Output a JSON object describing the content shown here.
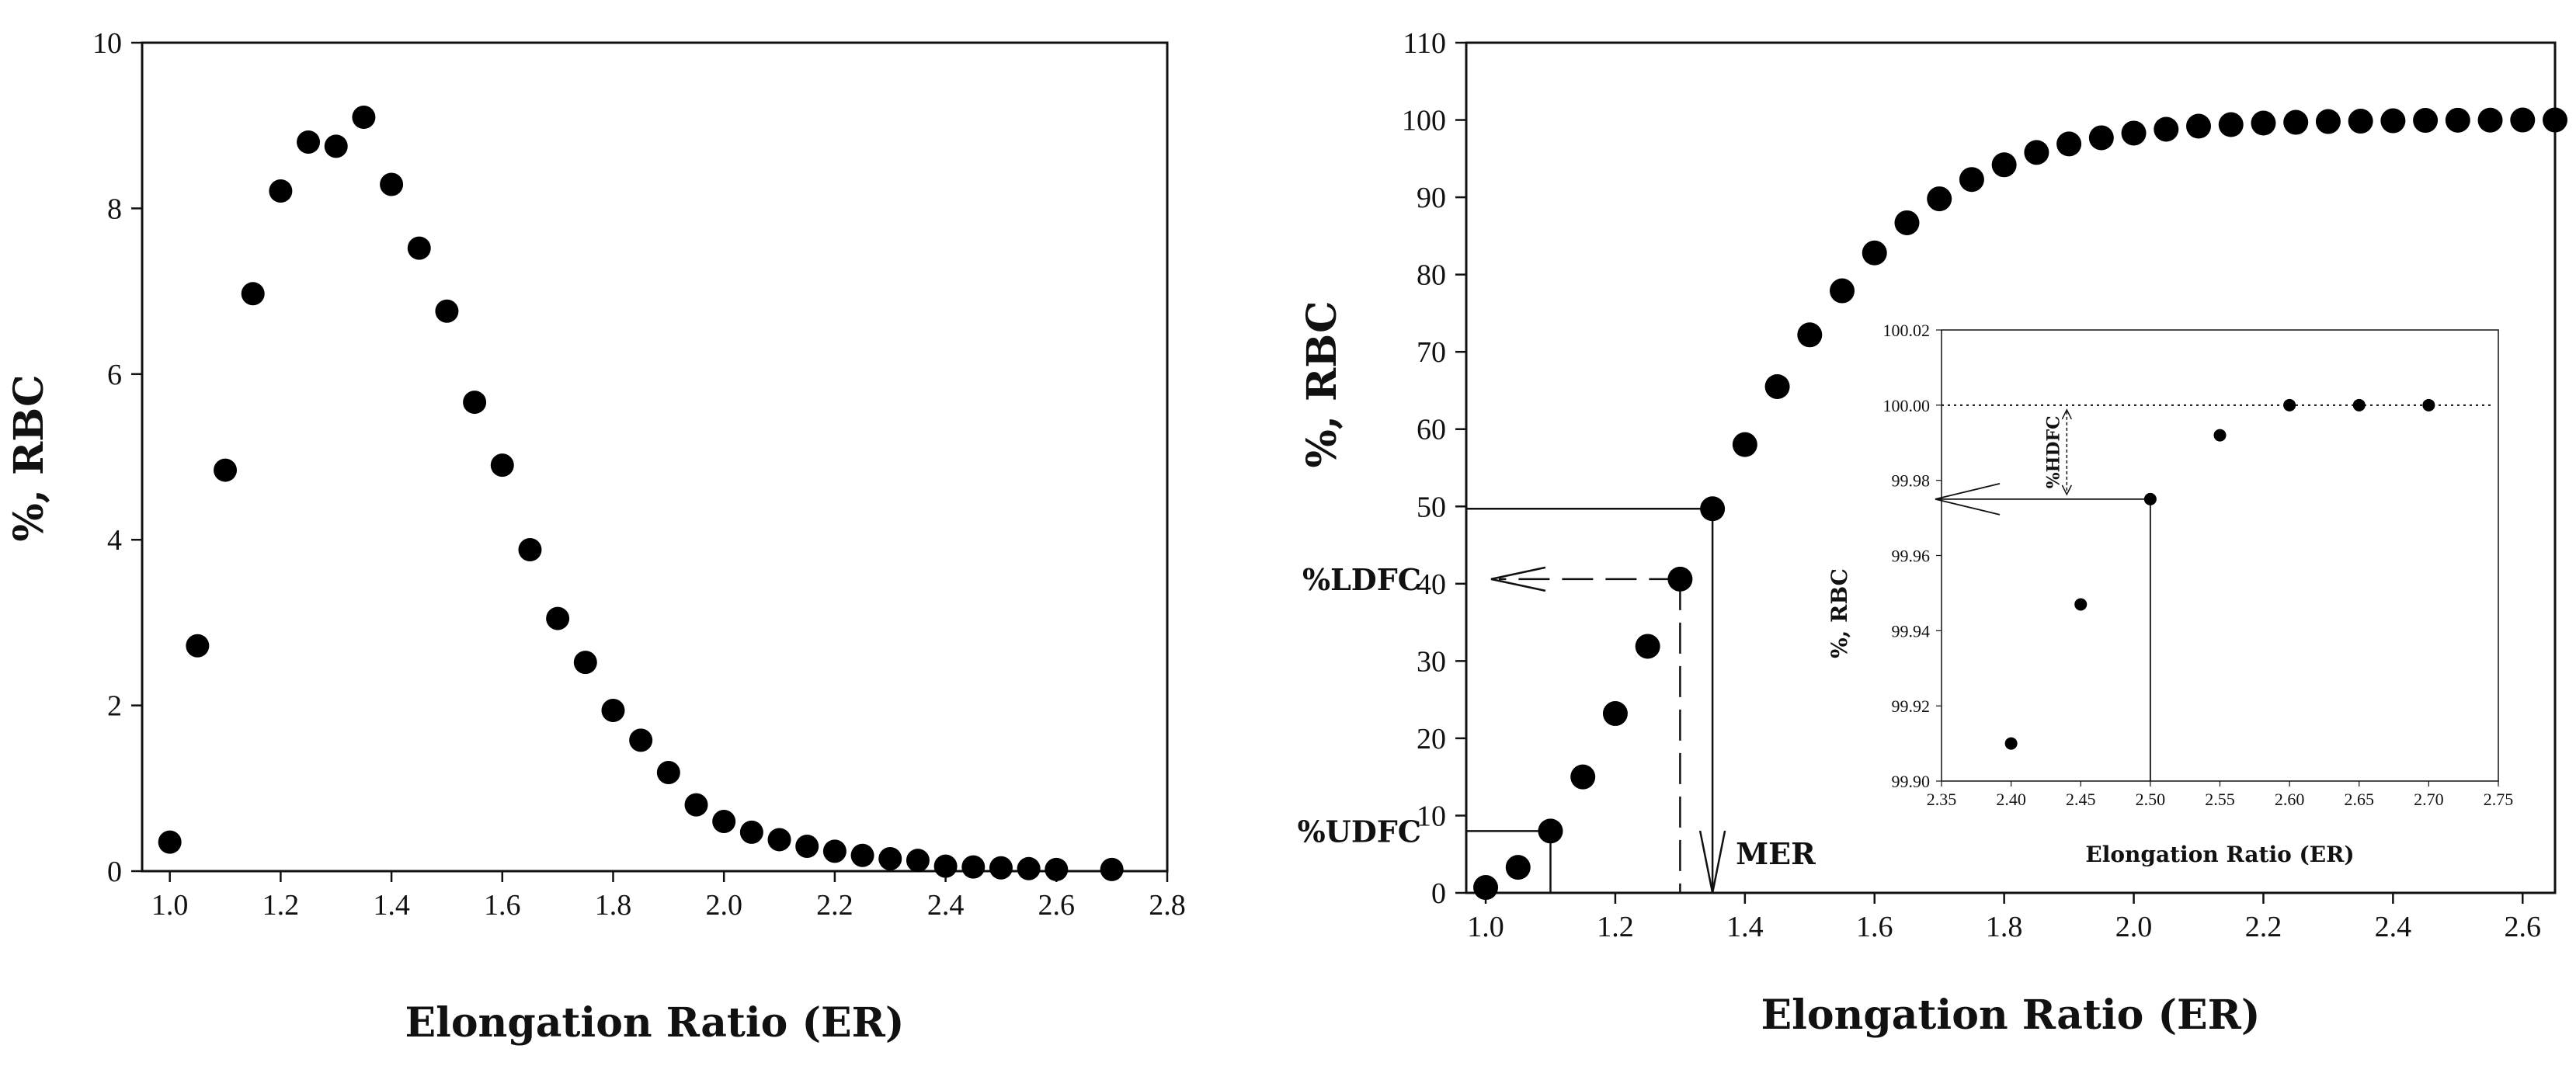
{
  "chart_data": [
    {
      "id": "left",
      "type": "scatter",
      "title": "",
      "xlabel": "Elongation Ratio (ER)",
      "ylabel": "%, RBC",
      "xlim": [
        0.95,
        2.8
      ],
      "ylim": [
        0,
        10
      ],
      "xticks": [
        1.0,
        1.2,
        1.4,
        1.6,
        1.8,
        2.0,
        2.2,
        2.4,
        2.6,
        2.8
      ],
      "xtick_labels": [
        "1.0",
        "1.2",
        "1.4",
        "1.6",
        "1.8",
        "2.0",
        "2.2",
        "2.4",
        "2.6",
        "2.8"
      ],
      "yticks": [
        0,
        2,
        4,
        6,
        8,
        10
      ],
      "ytick_labels": [
        "0",
        "2",
        "4",
        "6",
        "8",
        "10"
      ],
      "x": [
        1.0,
        1.05,
        1.1,
        1.15,
        1.2,
        1.25,
        1.3,
        1.35,
        1.4,
        1.45,
        1.5,
        1.55,
        1.6,
        1.65,
        1.7,
        1.75,
        1.8,
        1.85,
        1.9,
        1.95,
        2.0,
        2.05,
        2.1,
        2.15,
        2.2,
        2.25,
        2.3,
        2.35,
        2.4,
        2.45,
        2.5,
        2.55,
        2.6,
        2.7
      ],
      "y": [
        0.35,
        2.72,
        4.84,
        6.97,
        8.21,
        8.8,
        8.75,
        9.1,
        8.29,
        7.52,
        6.76,
        5.66,
        4.9,
        3.88,
        3.05,
        2.52,
        1.94,
        1.58,
        1.19,
        0.8,
        0.6,
        0.47,
        0.38,
        0.3,
        0.24,
        0.19,
        0.15,
        0.13,
        0.06,
        0.05,
        0.04,
        0.03,
        0.02,
        0.02
      ]
    },
    {
      "id": "right",
      "type": "scatter",
      "title": "",
      "xlabel": "Elongation Ratio (ER)",
      "ylabel": "%, RBC",
      "xlim": [
        0.97,
        2.65
      ],
      "ylim": [
        0,
        110
      ],
      "xticks": [
        1.0,
        1.2,
        1.4,
        1.6,
        1.8,
        2.0,
        2.2,
        2.4,
        2.6
      ],
      "xtick_labels": [
        "1.0",
        "1.2",
        "1.4",
        "1.6",
        "1.8",
        "2.0",
        "2.2",
        "2.4",
        "2.6"
      ],
      "yticks": [
        0,
        10,
        20,
        30,
        40,
        50,
        60,
        70,
        80,
        90,
        100,
        110
      ],
      "ytick_labels": [
        "0",
        "10",
        "20",
        "30",
        "40",
        "50",
        "60",
        "70",
        "80",
        "90",
        "100",
        "110"
      ],
      "x": [
        1.0,
        1.05,
        1.1,
        1.15,
        1.2,
        1.25,
        1.3,
        1.35,
        1.4,
        1.45,
        1.5,
        1.55,
        1.6,
        1.65,
        1.7,
        1.75,
        1.8,
        1.85,
        1.9,
        1.95,
        2.0,
        2.05,
        2.1,
        2.15,
        2.2,
        2.25,
        2.3,
        2.35,
        2.4,
        2.45,
        2.5,
        2.55,
        2.6,
        2.65
      ],
      "y": [
        0.7,
        3.3,
        8.0,
        15.0,
        23.2,
        31.9,
        40.6,
        49.7,
        58.0,
        65.5,
        72.2,
        77.9,
        82.8,
        86.7,
        89.8,
        92.3,
        94.2,
        95.8,
        96.9,
        97.7,
        98.3,
        98.8,
        99.2,
        99.4,
        99.6,
        99.7,
        99.8,
        99.85,
        99.9,
        99.95,
        99.97,
        99.98,
        100.0,
        100.0
      ],
      "annotations": {
        "ldfc_label": "%LDFC",
        "udfc_label": "%UDFC",
        "mer_label": "MER",
        "mer_x": 1.35,
        "mer_y": 49.7,
        "ldfc_x": 1.3,
        "ldfc_y": 40.6,
        "udfc_x": 1.1,
        "udfc_y": 8.0
      },
      "inset": {
        "type": "scatter",
        "xlabel": "Elongation Ratio (ER)",
        "ylabel": "%, RBC",
        "xlim": [
          2.35,
          2.75
        ],
        "ylim": [
          99.9,
          100.02
        ],
        "xticks": [
          2.35,
          2.4,
          2.45,
          2.5,
          2.55,
          2.6,
          2.65,
          2.7,
          2.75
        ],
        "xtick_labels": [
          "2.35",
          "2.40",
          "2.45",
          "2.50",
          "2.55",
          "2.60",
          "2.65",
          "2.70",
          "2.75"
        ],
        "yticks": [
          99.9,
          99.92,
          99.94,
          99.96,
          99.98,
          100.0,
          100.02
        ],
        "ytick_labels": [
          "99.90",
          "99.92",
          "99.94",
          "99.96",
          "99.98",
          "100.00",
          "100.02"
        ],
        "x": [
          2.4,
          2.45,
          2.5,
          2.55,
          2.6,
          2.65,
          2.7
        ],
        "y": [
          99.91,
          99.947,
          99.975,
          99.992,
          100.0,
          100.0,
          100.0
        ],
        "hdfc_label": "%HDFC",
        "reference_y": 100.0,
        "marker_x": 2.5,
        "marker_y": 99.975
      }
    }
  ]
}
